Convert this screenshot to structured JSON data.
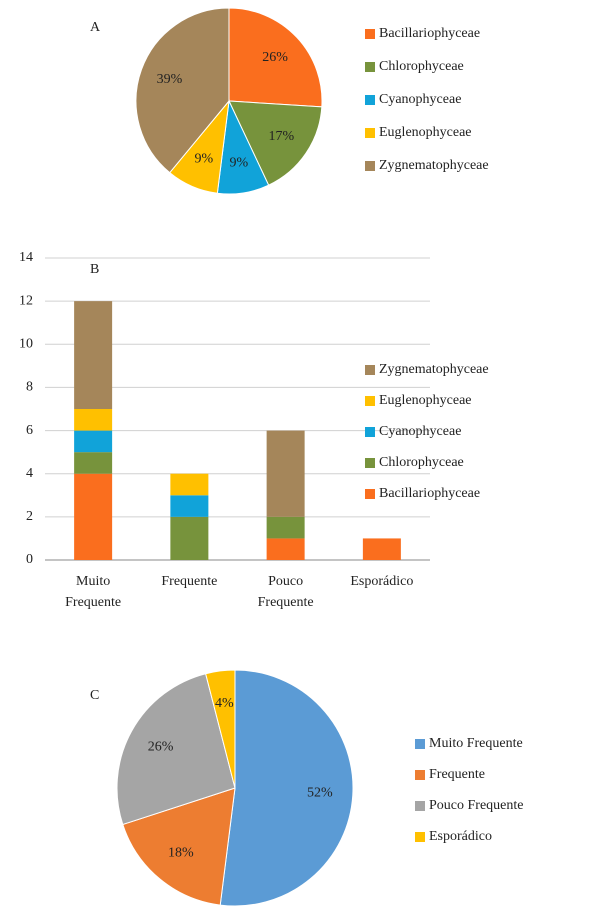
{
  "chart_data": [
    {
      "type": "pie",
      "title": "A",
      "categories": [
        "Bacillariophyceae",
        "Chlorophyceae",
        "Cyanophyceae",
        "Euglenophyceae",
        "Zygnematophyceae"
      ],
      "values": [
        26,
        17,
        9,
        9,
        39
      ],
      "value_labels": [
        "26%",
        "17%",
        "9%",
        "9%",
        "39%"
      ],
      "colors": [
        "#fa6e1e",
        "#77933c",
        "#11a3d9",
        "#ffc000",
        "#a5865a"
      ],
      "legend": "right"
    },
    {
      "type": "stacked_bar",
      "title": "B",
      "categories": [
        "Muito Frequente",
        "Frequente",
        "Pouco Frequente",
        "Esporádico"
      ],
      "series": [
        {
          "name": "Bacillariophyceae",
          "color": "#fa6e1e",
          "values": [
            4,
            0,
            1,
            1
          ]
        },
        {
          "name": "Chlorophyceae",
          "color": "#77933c",
          "values": [
            1,
            2,
            1,
            0
          ]
        },
        {
          "name": "Cyanophyceae",
          "color": "#11a3d9",
          "values": [
            1,
            1,
            0,
            0
          ]
        },
        {
          "name": "Euglenophyceae",
          "color": "#ffc000",
          "values": [
            1,
            1,
            0,
            0
          ]
        },
        {
          "name": "Zygnematophyceae",
          "color": "#a5865a",
          "values": [
            5,
            0,
            4,
            0
          ]
        }
      ],
      "ylim": [
        0,
        14
      ],
      "yticks": [
        0,
        2,
        4,
        6,
        8,
        10,
        12,
        14
      ],
      "grid": true,
      "legend": "right"
    },
    {
      "type": "pie",
      "title": "C",
      "categories": [
        "Muito Frequente",
        "Frequente",
        "Pouco Frequente",
        "Esporádico"
      ],
      "values": [
        52,
        18,
        26,
        4
      ],
      "value_labels": [
        "52%",
        "18%",
        "26%",
        "4%"
      ],
      "colors": [
        "#5b9bd5",
        "#ed7d31",
        "#a5a5a5",
        "#ffc000"
      ],
      "legend": "right"
    }
  ]
}
